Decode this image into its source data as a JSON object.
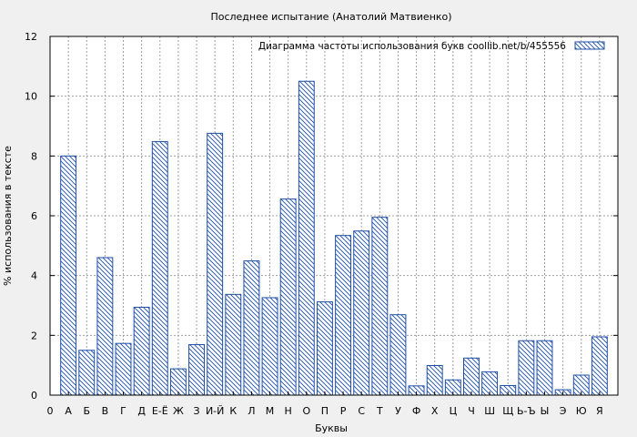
{
  "chart_data": {
    "type": "bar",
    "title": "Последнее испытание (Анатолий Матвиенко)",
    "xlabel": "Буквы",
    "ylabel": "% использования в тексте",
    "legend": {
      "label": "Диаграмма частоты использования букв  coollib.net/b/455556",
      "position": "top-right"
    },
    "ylim": [
      0,
      12
    ],
    "yticks": [
      0,
      2,
      4,
      6,
      8,
      10,
      12
    ],
    "grid": true,
    "categories": [
      "0",
      "А",
      "Б",
      "В",
      "Г",
      "Д",
      "Е-Ё",
      "Ж",
      "З",
      "И-Й",
      "К",
      "Л",
      "М",
      "Н",
      "О",
      "П",
      "Р",
      "С",
      "Т",
      "У",
      "Ф",
      "Х",
      "Ц",
      "Ч",
      "Ш",
      "Щ",
      "Ь-Ъ",
      "Ы",
      "Э",
      "Ю",
      "Я"
    ],
    "series": [
      {
        "values": [
          null,
          8.0,
          1.5,
          4.6,
          1.73,
          2.94,
          8.48,
          0.88,
          1.69,
          8.76,
          3.37,
          4.49,
          3.26,
          6.56,
          10.5,
          3.12,
          5.34,
          5.49,
          5.95,
          2.69,
          0.31,
          0.99,
          0.51,
          1.24,
          0.78,
          0.32,
          1.82,
          1.82,
          0.18,
          0.67,
          1.95
        ],
        "color": "#1f4fa8"
      }
    ]
  }
}
